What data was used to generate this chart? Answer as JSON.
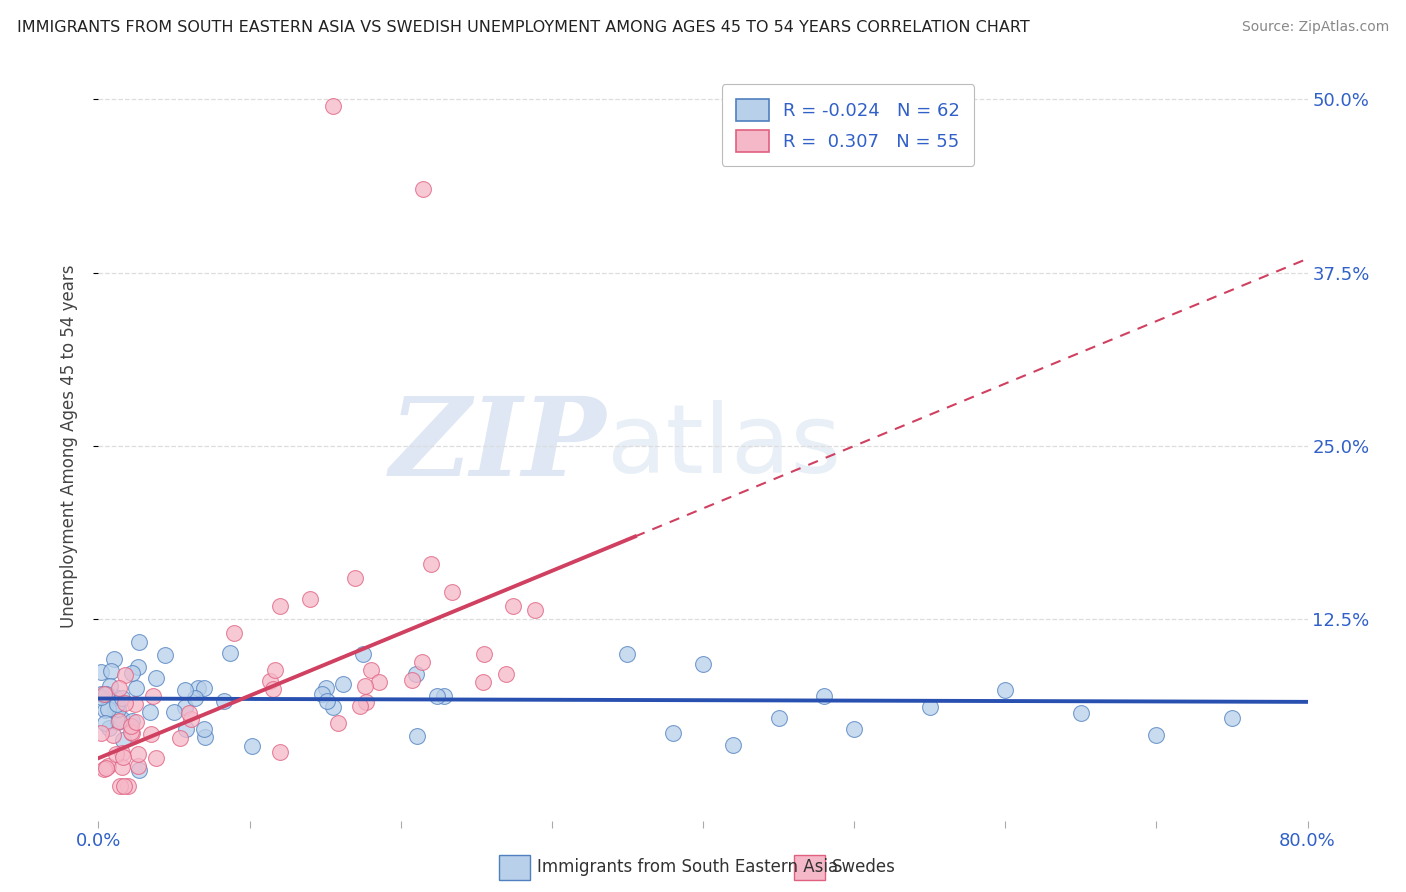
{
  "title": "IMMIGRANTS FROM SOUTH EASTERN ASIA VS SWEDISH UNEMPLOYMENT AMONG AGES 45 TO 54 YEARS CORRELATION CHART",
  "source": "Source: ZipAtlas.com",
  "ylabel": "Unemployment Among Ages 45 to 54 years",
  "ytick_labels": [
    "12.5%",
    "25.0%",
    "37.5%",
    "50.0%"
  ],
  "ytick_values": [
    0.125,
    0.25,
    0.375,
    0.5
  ],
  "xlim": [
    0.0,
    0.8
  ],
  "ylim": [
    -0.02,
    0.52
  ],
  "legend_label1": "Immigrants from South Eastern Asia",
  "legend_label2": "Swedes",
  "R1": -0.024,
  "N1": 62,
  "R2": 0.307,
  "N2": 55,
  "color_blue_fill": "#b8d0ea",
  "color_pink_fill": "#f5b8c8",
  "color_blue_edge": "#5080c0",
  "color_pink_edge": "#e06080",
  "color_blue_line": "#2850b0",
  "color_pink_line": "#d04060",
  "watermark_zip": "ZIP",
  "watermark_atlas": "atlas",
  "background_color": "#ffffff",
  "grid_color": "#dddddd",
  "title_color": "#222222",
  "axis_label_color": "#3060c8",
  "ylabel_color": "#444444"
}
